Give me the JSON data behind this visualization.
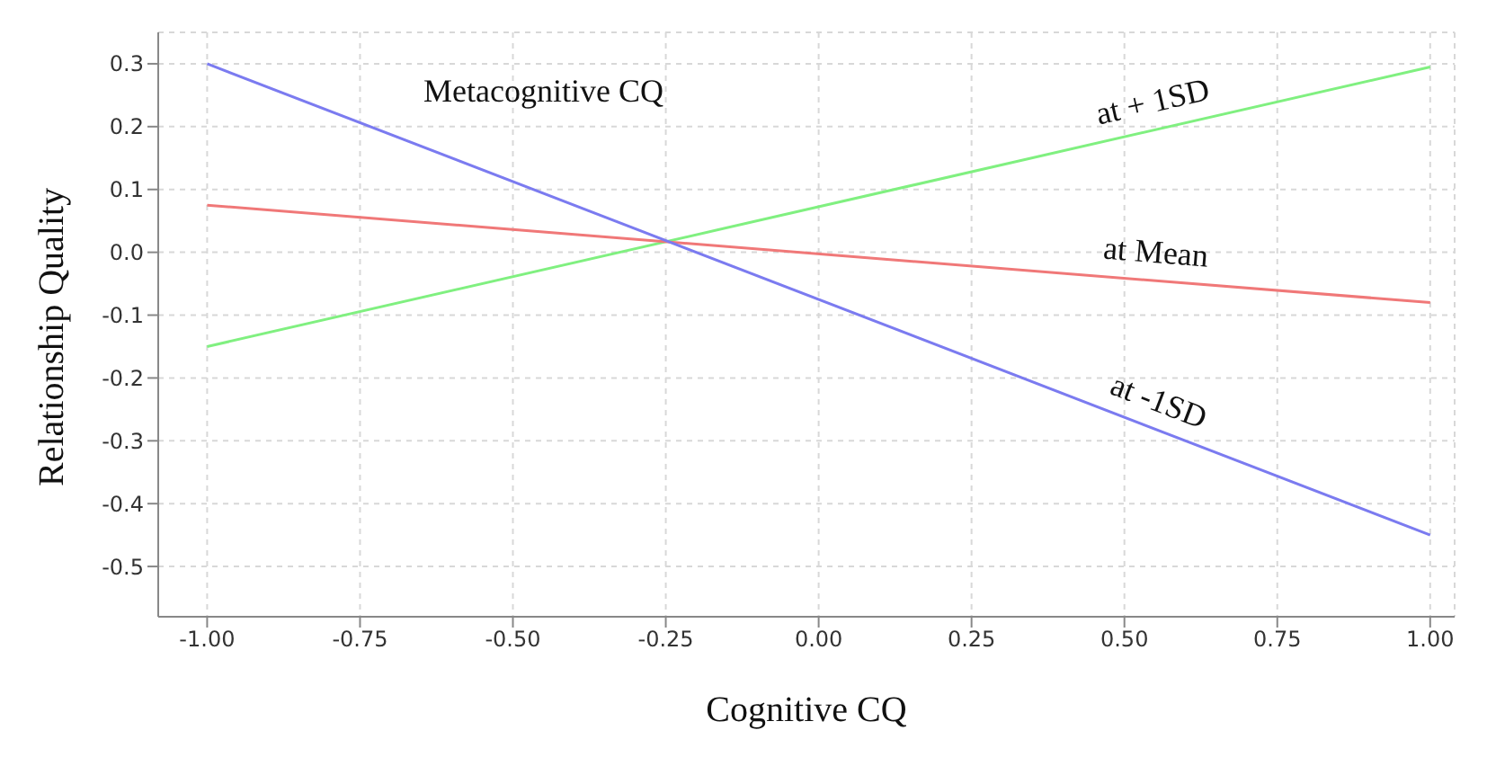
{
  "chart_data": {
    "type": "line",
    "xlabel": "Cognitive CQ",
    "ylabel": "Relationship Quality",
    "annotations": [
      "Metacognitive CQ"
    ],
    "x": [
      -1,
      1
    ],
    "series": [
      {
        "name": "at + 1SD",
        "color": "#80f080",
        "values": [
          -0.15,
          0.295
        ]
      },
      {
        "name": "at Mean",
        "color": "#f07878",
        "values": [
          0.075,
          -0.08
        ]
      },
      {
        "name": "at -1SD",
        "color": "#7b7bf0",
        "values": [
          0.3,
          -0.45
        ]
      }
    ],
    "xlim": [
      -1.08,
      1.04
    ],
    "xticks": [
      {
        "value": -1,
        "label": "-1.00"
      },
      {
        "value": -0.75,
        "label": "-0.75"
      },
      {
        "value": -0.5,
        "label": "-0.50"
      },
      {
        "value": -0.25,
        "label": "-0.25"
      },
      {
        "value": 0,
        "label": "0.00"
      },
      {
        "value": 0.25,
        "label": "0.25"
      },
      {
        "value": 0.5,
        "label": "0.50"
      },
      {
        "value": 0.75,
        "label": "0.75"
      },
      {
        "value": 1,
        "label": "1.00"
      }
    ],
    "ylim": [
      -0.58,
      0.35
    ],
    "yticks": [
      {
        "value": -0.5,
        "label": "-0.5"
      },
      {
        "value": -0.4,
        "label": "-0.4"
      },
      {
        "value": -0.3,
        "label": "-0.3"
      },
      {
        "value": -0.2,
        "label": "-0.2"
      },
      {
        "value": -0.1,
        "label": "-0.1"
      },
      {
        "value": 0,
        "label": "0.0"
      },
      {
        "value": 0.1,
        "label": "0.1"
      },
      {
        "value": 0.2,
        "label": "0.2"
      },
      {
        "value": 0.3,
        "label": "0.3"
      }
    ],
    "grid": true,
    "legend": false,
    "marker": "none",
    "line_style": "solid"
  }
}
